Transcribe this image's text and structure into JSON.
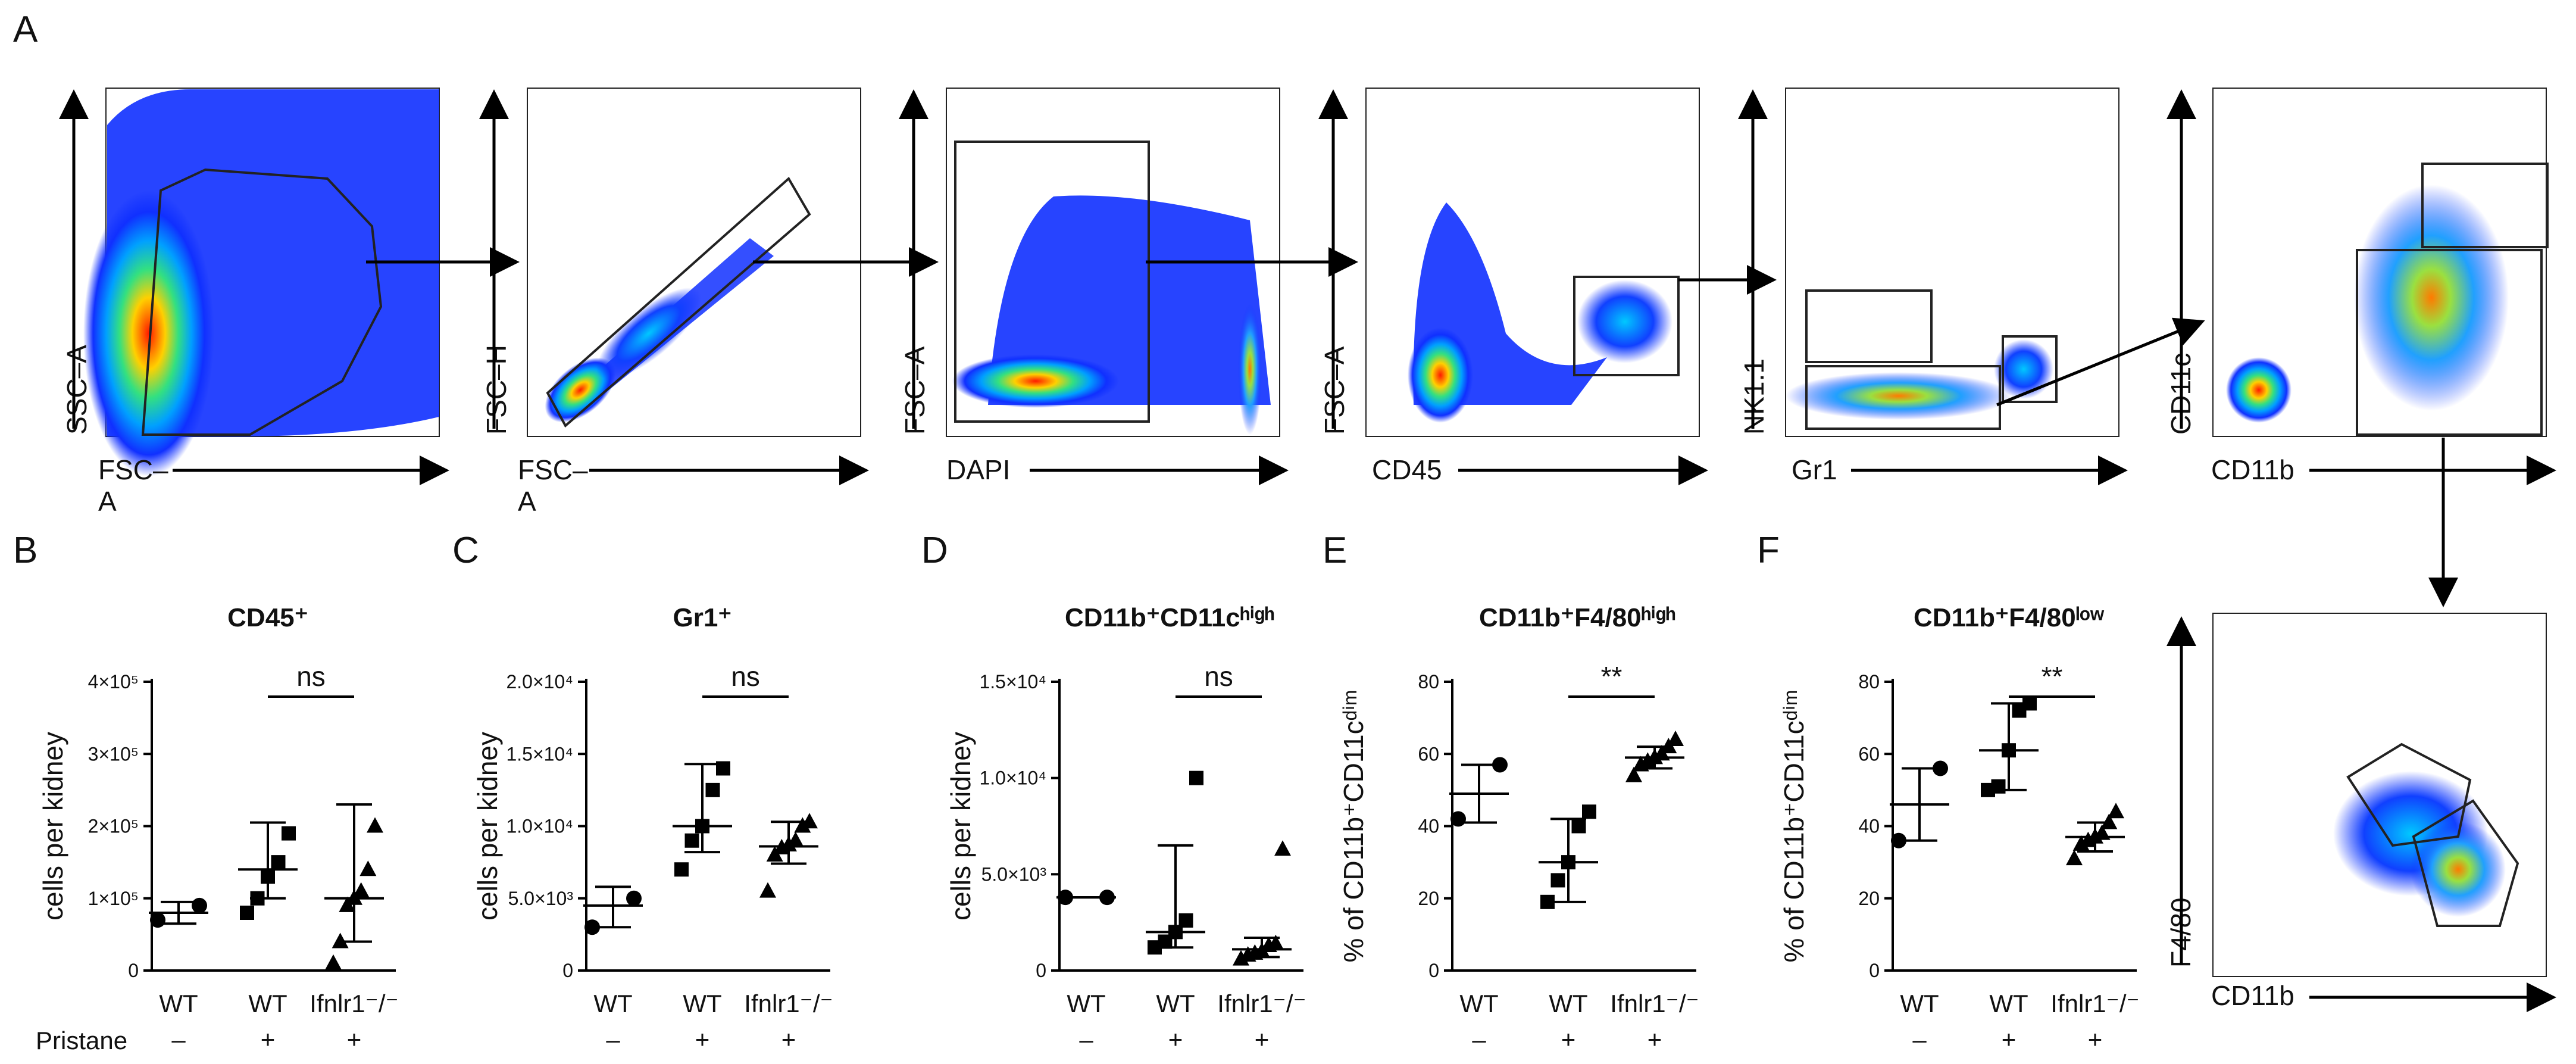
{
  "figure": {
    "panel_letters": [
      "A",
      "B",
      "C",
      "D",
      "E",
      "F"
    ]
  },
  "facs": [
    {
      "x_label": "FSC–",
      "x_label_2": "A",
      "y_label": "SSC–A"
    },
    {
      "x_label": "FSC–",
      "x_label_2": "A",
      "y_label": "FSC–H"
    },
    {
      "x_label": "DAPI",
      "y_label": "FSC–A"
    },
    {
      "x_label": "CD45",
      "y_label": "FSC–A"
    },
    {
      "x_label": "Gr1",
      "y_label": "NK1.1"
    },
    {
      "x_label": "CD11b",
      "y_label": "CD11c"
    },
    {
      "x_label": "CD11b",
      "y_label": "F4/80"
    }
  ],
  "row_label": "Pristane",
  "chart_data": [
    {
      "type": "scatter",
      "panel": "B",
      "title": "CD45⁺",
      "ylabel": "cells per kidney",
      "ylim": [
        0,
        400000
      ],
      "yticks": [
        0,
        100000,
        200000,
        300000,
        400000
      ],
      "ytick_labels": [
        "0",
        "1×10⁵",
        "2×10⁵",
        "3×10⁵",
        "4×10⁵"
      ],
      "categories": [
        "WT",
        "WT",
        "Ifnlr1⁻/⁻"
      ],
      "pristane": [
        "–",
        "+",
        "+"
      ],
      "markers": [
        "circle",
        "square",
        "triangle"
      ],
      "points": [
        [
          70000,
          90000
        ],
        [
          80000,
          100000,
          130000,
          150000,
          190000
        ],
        [
          10000,
          40000,
          90000,
          100000,
          110000,
          140000,
          200000
        ]
      ],
      "center": [
        80000,
        140000,
        100000
      ],
      "err_low": [
        65000,
        100000,
        40000
      ],
      "err_high": [
        95000,
        205000,
        230000
      ],
      "significance": {
        "pair": [
          1,
          2
        ],
        "label": "ns"
      }
    },
    {
      "type": "scatter",
      "panel": "C",
      "title": "Gr1⁺",
      "ylabel": "cells per kidney",
      "ylim": [
        0,
        20000
      ],
      "yticks": [
        0,
        5000,
        10000,
        15000,
        20000
      ],
      "ytick_labels": [
        "0",
        "5.0×10³",
        "1.0×10⁴",
        "1.5×10⁴",
        "2.0×10⁴"
      ],
      "categories": [
        "WT",
        "WT",
        "Ifnlr1⁻/⁻"
      ],
      "pristane": [
        "–",
        "+",
        "+"
      ],
      "markers": [
        "circle",
        "square",
        "triangle"
      ],
      "points": [
        [
          3000,
          5000
        ],
        [
          7000,
          9000,
          10000,
          12500,
          14000
        ],
        [
          5500,
          8000,
          8500,
          8700,
          9000,
          10000,
          10300
        ]
      ],
      "center": [
        4500,
        10000,
        8600
      ],
      "err_low": [
        3000,
        8200,
        7400
      ],
      "err_high": [
        5800,
        14300,
        10300
      ],
      "significance": {
        "pair": [
          1,
          2
        ],
        "label": "ns"
      }
    },
    {
      "type": "scatter",
      "panel": "D",
      "title": "CD11b⁺CD11cʰⁱᵍʰ",
      "ylabel": "cells per kidney",
      "ylim": [
        0,
        15000
      ],
      "yticks": [
        0,
        5000,
        10000,
        15000
      ],
      "ytick_labels": [
        "0",
        "5.0×10³",
        "1.0×10⁴",
        "1.5×10⁴"
      ],
      "categories": [
        "WT",
        "WT",
        "Ifnlr1⁻/⁻"
      ],
      "pristane": [
        "–",
        "+",
        "+"
      ],
      "markers": [
        "circle",
        "square",
        "triangle"
      ],
      "points": [
        [
          3800,
          3800
        ],
        [
          1200,
          1500,
          2000,
          2600,
          10000
        ],
        [
          600,
          800,
          900,
          1000,
          1300,
          1400,
          6300
        ]
      ],
      "center": [
        3800,
        2000,
        1100
      ],
      "err_low": [
        3800,
        1200,
        700
      ],
      "err_high": [
        3800,
        6500,
        1700
      ],
      "significance": {
        "pair": [
          1,
          2
        ],
        "label": "ns"
      }
    },
    {
      "type": "scatter",
      "panel": "E",
      "title": "CD11b⁺F4/80ʰⁱᵍʰ",
      "ylabel": "% of CD11b⁺CD11cᵈⁱᵐ",
      "ylim": [
        0,
        80
      ],
      "yticks": [
        0,
        20,
        40,
        60,
        80
      ],
      "ytick_labels": [
        "0",
        "20",
        "40",
        "60",
        "80"
      ],
      "categories": [
        "WT",
        "WT",
        "Ifnlr1⁻/⁻"
      ],
      "pristane": [
        "–",
        "+",
        "+"
      ],
      "markers": [
        "circle",
        "square",
        "triangle"
      ],
      "points": [
        [
          42,
          57
        ],
        [
          19,
          25,
          30,
          40,
          44
        ],
        [
          54,
          57,
          58,
          59,
          60,
          62,
          64
        ]
      ],
      "center": [
        49,
        30,
        59
      ],
      "err_low": [
        41,
        19,
        56
      ],
      "err_high": [
        57,
        42,
        62
      ],
      "significance": {
        "pair": [
          1,
          2
        ],
        "label": "**"
      }
    },
    {
      "type": "scatter",
      "panel": "F",
      "title": "CD11b⁺F4/80ˡᵒʷ",
      "ylabel": "% of CD11b⁺CD11cᵈⁱᵐ",
      "ylim": [
        0,
        80
      ],
      "yticks": [
        0,
        20,
        40,
        60,
        80
      ],
      "ytick_labels": [
        "0",
        "20",
        "40",
        "60",
        "80"
      ],
      "categories": [
        "WT",
        "WT",
        "Ifnlr1⁻/⁻"
      ],
      "pristane": [
        "–",
        "+",
        "+"
      ],
      "markers": [
        "circle",
        "square",
        "triangle"
      ],
      "points": [
        [
          36,
          56
        ],
        [
          50,
          51,
          61,
          72,
          74
        ],
        [
          31,
          35,
          36,
          37,
          38,
          41,
          44
        ]
      ],
      "center": [
        46,
        61,
        37
      ],
      "err_low": [
        36,
        50,
        33
      ],
      "err_high": [
        56,
        74,
        41
      ],
      "significance": {
        "pair": [
          1,
          2
        ],
        "label": "**"
      }
    }
  ]
}
